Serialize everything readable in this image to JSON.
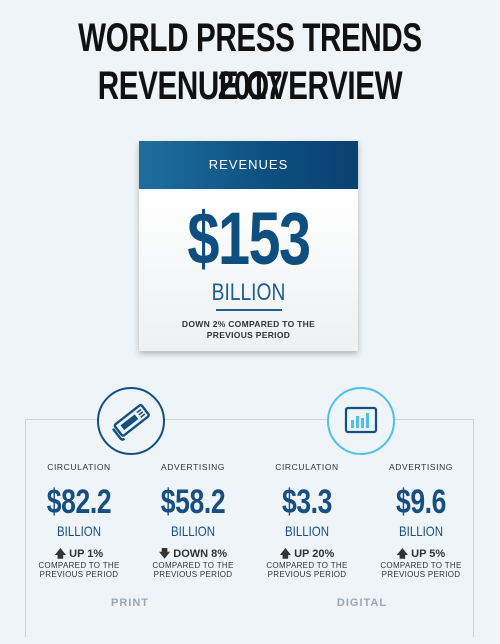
{
  "title": {
    "line1": "WORLD PRESS TRENDS 2017",
    "line2": "REVENUE OVERVIEW"
  },
  "revenues": {
    "header": "REVENUES",
    "amount": "$153",
    "unit": "BILLION",
    "change_line1": "DOWN 2% COMPARED TO THE",
    "change_line2": "PREVIOUS PERIOD"
  },
  "icons": {
    "print": "newspaper-icon",
    "digital": "bar-chart-tablet-icon",
    "print_color": "#12507f",
    "digital_color": "#4fc0e6"
  },
  "columns": [
    {
      "label": "CIRCULATION",
      "amount": "$82.2",
      "unit": "BILLION",
      "arrow": "🡅",
      "change": "UP 1%",
      "compare1": "COMPARED TO THE",
      "compare2": "PREVIOUS PERIOD"
    },
    {
      "label": "ADVERTISING",
      "amount": "$58.2",
      "unit": "BILLION",
      "arrow": "🡇",
      "change": "DOWN 8%",
      "compare1": "COMPARED TO THE",
      "compare2": "PREVIOUS PERIOD"
    },
    {
      "label": "CIRCULATION",
      "amount": "$3.3",
      "unit": "BILLION",
      "arrow": "🡅",
      "change": "UP 20%",
      "compare1": "COMPARED TO THE",
      "compare2": "PREVIOUS PERIOD"
    },
    {
      "label": "ADVERTISING",
      "amount": "$9.6",
      "unit": "BILLION",
      "arrow": "🡅",
      "change": "UP 5%",
      "compare1": "COMPARED TO THE",
      "compare2": "PREVIOUS PERIOD"
    }
  ],
  "sections": {
    "print": "PRINT",
    "digital": "DIGITAL"
  }
}
